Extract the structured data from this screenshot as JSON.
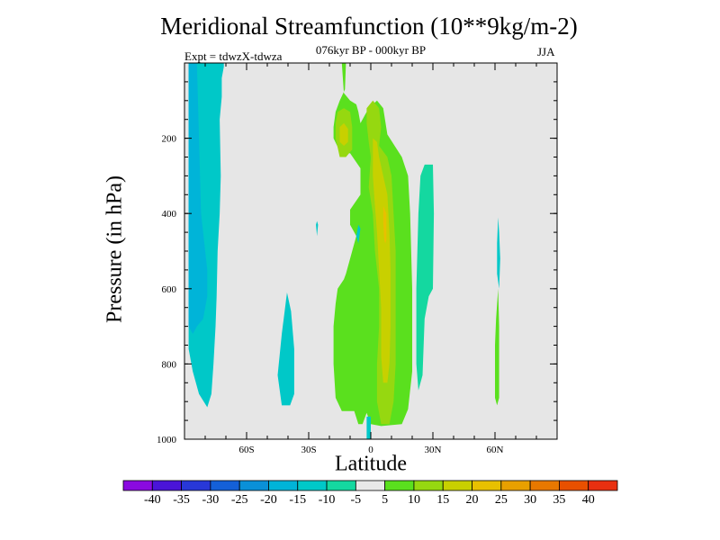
{
  "chart_data": {
    "type": "heatmap",
    "title": "Meridional Streamfunction (10**9kg/m-2)",
    "subtitle": "076kyr BP - 000kyr BP",
    "experiment_label": "Expt = tdwzX-tdwza",
    "season": "JJA",
    "xlabel": "Latitude",
    "ylabel": "Pressure (in hPa)",
    "xlim": [
      -90,
      90
    ],
    "ylim": [
      1000,
      0
    ],
    "x_ticks": [
      {
        "value": -60,
        "label": "60S"
      },
      {
        "value": -30,
        "label": "30S"
      },
      {
        "value": 0,
        "label": "0"
      },
      {
        "value": 30,
        "label": "30N"
      },
      {
        "value": 60,
        "label": "60N"
      }
    ],
    "y_ticks": [
      {
        "value": 200,
        "label": "200"
      },
      {
        "value": 400,
        "label": "400"
      },
      {
        "value": 600,
        "label": "600"
      },
      {
        "value": 800,
        "label": "800"
      },
      {
        "value": 1000,
        "label": "1000"
      }
    ],
    "colorbar": {
      "levels": [
        -40,
        -35,
        -30,
        -25,
        -20,
        -15,
        -10,
        -5,
        5,
        10,
        15,
        20,
        25,
        30,
        35,
        40
      ],
      "labels": [
        "-40",
        "-35",
        "-30",
        "-25",
        "-20",
        "-15",
        "-10",
        "-5",
        "5",
        "10",
        "15",
        "20",
        "25",
        "30",
        "35",
        "40"
      ],
      "colors": [
        "#8a0ae0",
        "#4a14d8",
        "#2838d8",
        "#1460d8",
        "#0a90d8",
        "#00b4d8",
        "#00c8c8",
        "#14d8a0",
        "#e8e8e8",
        "#5ae01e",
        "#96d810",
        "#c8d000",
        "#e8c000",
        "#e8a000",
        "#e87800",
        "#e85000",
        "#e83010"
      ]
    },
    "background_color": "#e6e6e6",
    "regions": [
      {
        "level_color_index": 6,
        "points": [
          [
            -88,
            0
          ],
          [
            -71,
            0
          ],
          [
            -71,
            10
          ],
          [
            -72,
            40
          ],
          [
            -72,
            90
          ],
          [
            -73,
            150
          ],
          [
            -72.5,
            300
          ],
          [
            -73,
            400
          ],
          [
            -74,
            500
          ],
          [
            -74.5,
            620
          ],
          [
            -75,
            700
          ],
          [
            -76,
            800
          ],
          [
            -77,
            880
          ],
          [
            -79,
            915
          ],
          [
            -83,
            880
          ],
          [
            -86,
            820
          ],
          [
            -88,
            760
          ]
        ]
      },
      {
        "level_color_index": 5,
        "points": [
          [
            -88,
            0
          ],
          [
            -84,
            0
          ],
          [
            -83,
            200
          ],
          [
            -82,
            400
          ],
          [
            -80,
            500
          ],
          [
            -79,
            550
          ],
          [
            -79,
            620
          ],
          [
            -81,
            680
          ],
          [
            -84,
            700
          ],
          [
            -86,
            720
          ],
          [
            -88,
            700
          ]
        ]
      },
      {
        "level_color_index": 6,
        "points": [
          [
            -45,
            830
          ],
          [
            -43,
            720
          ],
          [
            -40.5,
            610
          ],
          [
            -38.5,
            660
          ],
          [
            -37,
            760
          ],
          [
            -37,
            880
          ],
          [
            -39,
            910
          ],
          [
            -43,
            910
          ]
        ]
      },
      {
        "level_color_index": 9,
        "points": [
          [
            -14,
            0
          ],
          [
            -12,
            0
          ],
          [
            -12.5,
            70
          ],
          [
            -15,
            100
          ],
          [
            -17,
            130
          ],
          [
            -18,
            170
          ],
          [
            -18,
            200
          ],
          [
            -14.5,
            240
          ],
          [
            -10,
            240
          ],
          [
            -5,
            280
          ],
          [
            -5,
            350
          ],
          [
            -10,
            390
          ],
          [
            -10,
            430
          ],
          [
            -7,
            460
          ],
          [
            -12,
            560
          ],
          [
            -13,
            575
          ],
          [
            -16,
            600
          ],
          [
            -17,
            640
          ],
          [
            -18,
            700
          ],
          [
            -18,
            800
          ],
          [
            -17,
            890
          ],
          [
            -14,
            925
          ],
          [
            -8,
            925
          ],
          [
            -6,
            960
          ],
          [
            -4,
            960
          ],
          [
            -2,
            930
          ],
          [
            0,
            960
          ],
          [
            5,
            965
          ],
          [
            15,
            960
          ],
          [
            18,
            920
          ],
          [
            20,
            820
          ],
          [
            20,
            600
          ],
          [
            19,
            400
          ],
          [
            18,
            300
          ],
          [
            15,
            250
          ],
          [
            8,
            190
          ],
          [
            6,
            120
          ],
          [
            3,
            100
          ],
          [
            -1,
            120
          ],
          [
            -3,
            140
          ],
          [
            -5,
            160
          ],
          [
            -6,
            130
          ],
          [
            -7,
            110
          ],
          [
            -10,
            100
          ],
          [
            -13,
            80
          ]
        ]
      },
      {
        "level_color_index": 10,
        "points": [
          [
            -16,
            130
          ],
          [
            -13,
            120
          ],
          [
            -10,
            130
          ],
          [
            -9,
            170
          ],
          [
            -9,
            230
          ],
          [
            -12,
            250
          ],
          [
            -15,
            250
          ],
          [
            -17,
            200
          ],
          [
            -17,
            160
          ]
        ]
      },
      {
        "level_color_index": 11,
        "points": [
          [
            -15,
            170
          ],
          [
            -13,
            160
          ],
          [
            -11,
            175
          ],
          [
            -11,
            210
          ],
          [
            -13,
            220
          ],
          [
            -15,
            210
          ]
        ]
      },
      {
        "level_color_index": 10,
        "points": [
          [
            -2,
            120
          ],
          [
            1,
            100
          ],
          [
            4,
            120
          ],
          [
            5,
            170
          ],
          [
            4,
            220
          ],
          [
            8,
            250
          ],
          [
            10,
            300
          ],
          [
            11,
            400
          ],
          [
            12,
            500
          ],
          [
            12,
            650
          ],
          [
            12,
            800
          ],
          [
            11,
            900
          ],
          [
            9,
            960
          ],
          [
            5,
            960
          ],
          [
            3,
            900
          ],
          [
            3,
            800
          ],
          [
            4,
            700
          ],
          [
            4,
            600
          ],
          [
            2,
            500
          ],
          [
            1,
            400
          ],
          [
            -1,
            330
          ],
          [
            0,
            250
          ],
          [
            -1,
            210
          ],
          [
            -2,
            160
          ]
        ]
      },
      {
        "level_color_index": 11,
        "points": [
          [
            1,
            200
          ],
          [
            3,
            210
          ],
          [
            4,
            250
          ],
          [
            6,
            300
          ],
          [
            8,
            350
          ],
          [
            9,
            450
          ],
          [
            9.5,
            550
          ],
          [
            9.5,
            700
          ],
          [
            9,
            800
          ],
          [
            8,
            850
          ],
          [
            6,
            850
          ],
          [
            5,
            780
          ],
          [
            5,
            650
          ],
          [
            4,
            550
          ],
          [
            3,
            450
          ],
          [
            2,
            380
          ],
          [
            1,
            300
          ]
        ]
      },
      {
        "level_color_index": 12,
        "points": [
          [
            6,
            380
          ],
          [
            7.5,
            400
          ],
          [
            7.5,
            470
          ],
          [
            7,
            480
          ],
          [
            6.5,
            470
          ],
          [
            6,
            420
          ]
        ]
      },
      {
        "level_color_index": 6,
        "points": [
          [
            -2,
            1000
          ],
          [
            0,
            1000
          ],
          [
            0,
            940
          ],
          [
            -2,
            940
          ]
        ]
      },
      {
        "level_color_index": 7,
        "points": [
          [
            24,
            300
          ],
          [
            26,
            270
          ],
          [
            30,
            270
          ],
          [
            30.5,
            400
          ],
          [
            30,
            600
          ],
          [
            28,
            620
          ],
          [
            26,
            680
          ],
          [
            25,
            830
          ],
          [
            23,
            870
          ],
          [
            22,
            800
          ],
          [
            22,
            600
          ],
          [
            23,
            400
          ]
        ]
      },
      {
        "level_color_index": 6,
        "points": [
          [
            -7,
            460
          ],
          [
            -6,
            430
          ],
          [
            -5,
            440
          ],
          [
            -6,
            480
          ]
        ]
      },
      {
        "level_color_index": 6,
        "points": [
          [
            -26.5,
            430
          ],
          [
            -26,
            420
          ],
          [
            -25.5,
            430
          ],
          [
            -26,
            460
          ]
        ]
      },
      {
        "level_color_index": 9,
        "points": [
          [
            60.5,
            680
          ],
          [
            61.5,
            600
          ],
          [
            62,
            700
          ],
          [
            62,
            890
          ],
          [
            61,
            910
          ],
          [
            60,
            890
          ],
          [
            60,
            750
          ]
        ]
      },
      {
        "level_color_index": 6,
        "points": [
          [
            61,
            480
          ],
          [
            61.5,
            410
          ],
          [
            62,
            450
          ],
          [
            62.5,
            520
          ],
          [
            62,
            600
          ],
          [
            61,
            560
          ]
        ]
      }
    ]
  }
}
